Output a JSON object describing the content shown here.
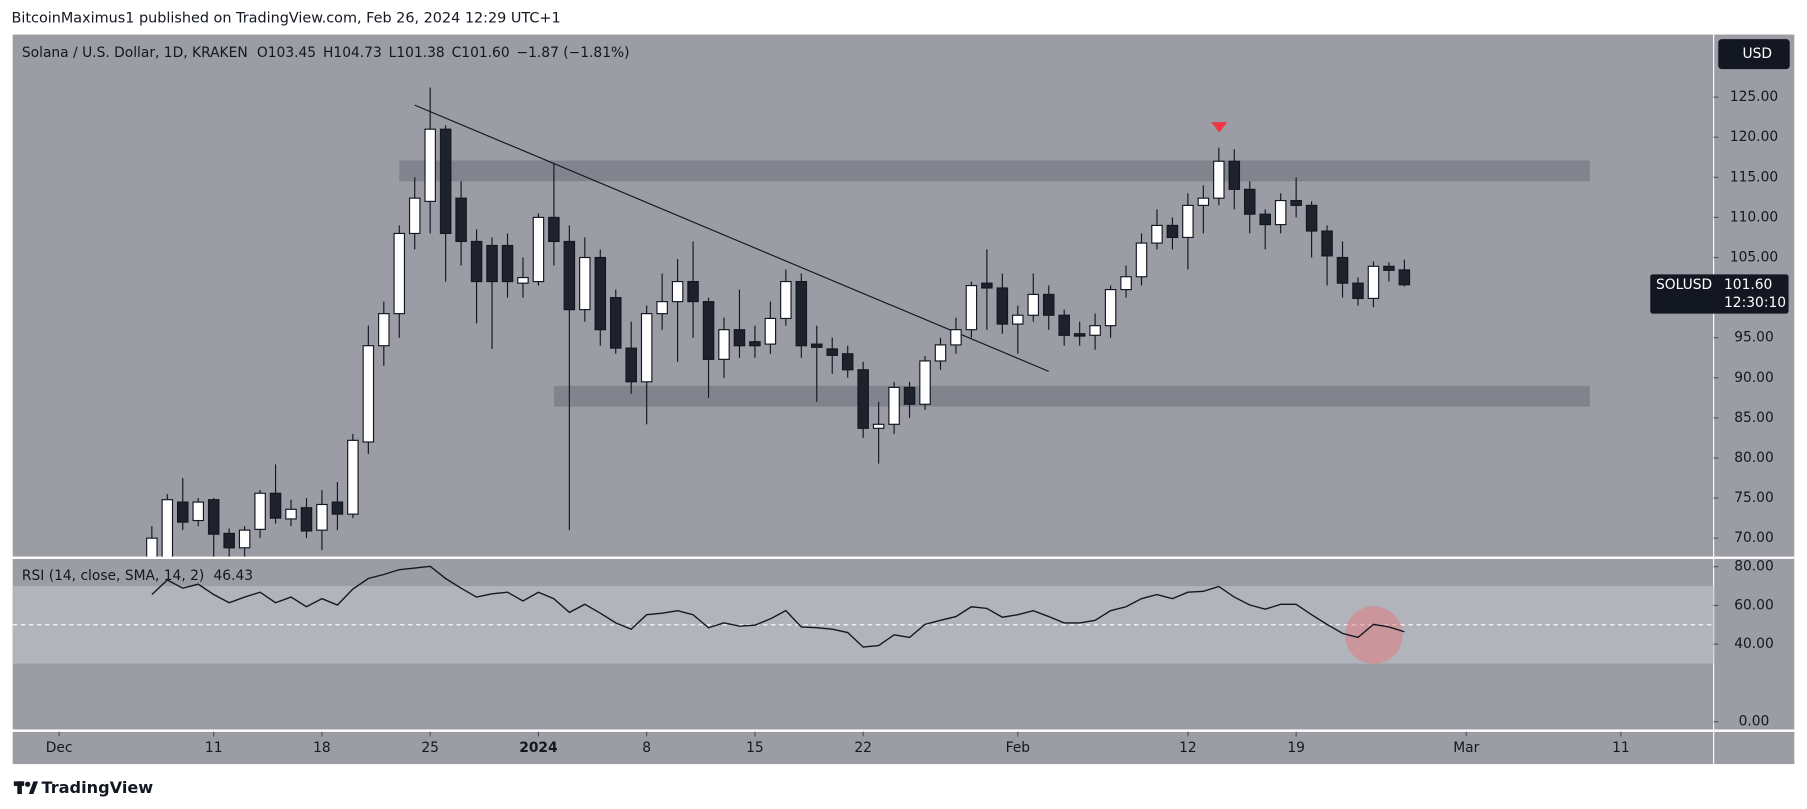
{
  "header": "BitcoinMaximus1 published on TradingView.com, Feb 26, 2024 12:29 UTC+1",
  "footer": "TradingView",
  "currency_button": "USD",
  "chart_data": [
    {
      "type": "candlestick",
      "legend": {
        "symbol": "Solana / U.S. Dollar, 1D, KRAKEN",
        "fields": [
          {
            "key": "O",
            "value": "103.45"
          },
          {
            "key": "H",
            "value": "104.73"
          },
          {
            "key": "L",
            "value": "101.38"
          },
          {
            "key": "C",
            "value": "101.60"
          }
        ],
        "change": "−1.87 (−1.81%)"
      },
      "last_price": {
        "symbol": "SOLUSD",
        "label": "101.60",
        "countdown": "12:30:10"
      },
      "up_color": "#ffffff",
      "down_color": "#1e222d",
      "wick_color": "#131722",
      "x": [
        "2023-12-07",
        "2023-12-08",
        "2023-12-09",
        "2023-12-10",
        "2023-12-11",
        "2023-12-12",
        "2023-12-13",
        "2023-12-14",
        "2023-12-15",
        "2023-12-16",
        "2023-12-17",
        "2023-12-18",
        "2023-12-19",
        "2023-12-20",
        "2023-12-21",
        "2023-12-22",
        "2023-12-23",
        "2023-12-24",
        "2023-12-25",
        "2023-12-26",
        "2023-12-27",
        "2023-12-28",
        "2023-12-29",
        "2023-12-30",
        "2023-12-31",
        "2024-01-01",
        "2024-01-02",
        "2024-01-03",
        "2024-01-04",
        "2024-01-05",
        "2024-01-06",
        "2024-01-07",
        "2024-01-08",
        "2024-01-09",
        "2024-01-10",
        "2024-01-11",
        "2024-01-12",
        "2024-01-13",
        "2024-01-14",
        "2024-01-15",
        "2024-01-16",
        "2024-01-17",
        "2024-01-18",
        "2024-01-19",
        "2024-01-20",
        "2024-01-21",
        "2024-01-22",
        "2024-01-23",
        "2024-01-24",
        "2024-01-25",
        "2024-01-26",
        "2024-01-27",
        "2024-01-28",
        "2024-01-29",
        "2024-01-30",
        "2024-01-31",
        "2024-02-01",
        "2024-02-02",
        "2024-02-03",
        "2024-02-04",
        "2024-02-05",
        "2024-02-06",
        "2024-02-07",
        "2024-02-08",
        "2024-02-09",
        "2024-02-10",
        "2024-02-11",
        "2024-02-12",
        "2024-02-13",
        "2024-02-14",
        "2024-02-15",
        "2024-02-16",
        "2024-02-17",
        "2024-02-18",
        "2024-02-19",
        "2024-02-20",
        "2024-02-21",
        "2024-02-22",
        "2024-02-23",
        "2024-02-24",
        "2024-02-25",
        "2024-02-26"
      ],
      "open": [
        67,
        67.5,
        74.5,
        72.2,
        74.8,
        70.6,
        68.8,
        71.1,
        75.6,
        72.4,
        73.8,
        71,
        74.5,
        73,
        82,
        94,
        98,
        108,
        112,
        121,
        112.4,
        107,
        106.5,
        106.5,
        101.8,
        102,
        110,
        107,
        98.5,
        105,
        100,
        93.7,
        89.5,
        98,
        99.5,
        102,
        99.5,
        92.3,
        96,
        94.5,
        94.2,
        97.4,
        102,
        94.2,
        93.6,
        93,
        91,
        83.7,
        84.2,
        88.8,
        86.7,
        92.1,
        94.1,
        96,
        101.8,
        101.2,
        96.7,
        97.8,
        100.4,
        97.8,
        95.5,
        95.3,
        96.5,
        101,
        102.6,
        106.8,
        109,
        107.5,
        111.5,
        112.4,
        117,
        113.5,
        110.4,
        109.1,
        112.1,
        111.5,
        108.3,
        105,
        101.8,
        99.9,
        103.9,
        103.45
      ],
      "high": [
        71.5,
        75.5,
        77.5,
        75,
        75,
        71.2,
        71.5,
        76,
        79.2,
        74.8,
        75,
        76,
        77,
        83,
        96.5,
        99.5,
        109,
        115,
        126.2,
        121.5,
        114.5,
        108.5,
        107.5,
        108,
        105,
        110.5,
        116.7,
        109,
        107.5,
        106,
        101,
        97,
        99,
        103,
        104.8,
        107,
        100,
        97.5,
        101,
        96.5,
        99.5,
        103.5,
        103,
        96.5,
        95,
        94,
        92,
        87,
        89.5,
        89.5,
        92.7,
        95,
        97.5,
        102,
        106,
        103,
        99,
        103,
        101.5,
        98.5,
        97,
        98,
        101.5,
        104,
        108,
        111,
        110,
        113,
        114,
        118.7,
        118.5,
        114.5,
        111,
        113,
        115,
        112,
        109,
        107,
        102.5,
        104.5,
        104.4,
        104.73
      ],
      "low": [
        63,
        66,
        71,
        71.5,
        67,
        67,
        67,
        70,
        71.8,
        71.5,
        70,
        68.5,
        71,
        72.5,
        80.5,
        91.5,
        95,
        106,
        108,
        102,
        104,
        96.8,
        93.6,
        100,
        100,
        101.5,
        104,
        71,
        97,
        94,
        93,
        88,
        84.2,
        96,
        92,
        95,
        87.5,
        90,
        92.5,
        92.5,
        93,
        96.5,
        92.5,
        87,
        90.5,
        90,
        82.5,
        79.3,
        83,
        85,
        86,
        91,
        93,
        95,
        96,
        95.5,
        93,
        97,
        96,
        94,
        94,
        93.5,
        95,
        100,
        101.5,
        106,
        106,
        103.5,
        108,
        111.5,
        111,
        108,
        106,
        108,
        110,
        105,
        101.5,
        100,
        99,
        98.8,
        102,
        101.38
      ],
      "close": [
        70,
        74.8,
        72,
        74.5,
        70.5,
        68.8,
        71,
        75.6,
        72.5,
        73.6,
        70.9,
        74.2,
        73,
        82.2,
        94,
        98,
        108,
        112.4,
        121,
        108,
        107,
        102,
        102,
        102,
        102.5,
        110,
        107,
        98.5,
        105,
        96,
        93.7,
        89.5,
        98,
        99.5,
        102,
        99.5,
        92.3,
        96,
        94,
        94,
        97.4,
        102,
        94,
        93.8,
        92.8,
        91,
        83.7,
        84.2,
        88.8,
        86.7,
        92.1,
        94.1,
        96,
        101.5,
        101.2,
        96.7,
        97.8,
        100.4,
        97.8,
        95.3,
        95.2,
        96.5,
        101,
        102.6,
        106.8,
        109,
        107.5,
        111.5,
        112.4,
        117,
        113.5,
        110.4,
        109.1,
        112.1,
        111.5,
        108.3,
        105.2,
        101.8,
        99.9,
        103.9,
        103.4,
        101.6
      ],
      "zones": [
        {
          "x": [
            "2023-12-23",
            "2024-03-09"
          ],
          "y": [
            114.5,
            117.1
          ]
        },
        {
          "x": [
            "2024-01-02",
            "2024-03-09"
          ],
          "y": [
            86.4,
            89
          ]
        }
      ],
      "zone_color": "#7e8089",
      "trendline": {
        "x": [
          "2023-12-24",
          "2024-02-03"
        ],
        "y": [
          124,
          90.8
        ]
      },
      "xlim": [
        "2023-11-28",
        "2024-03-17"
      ],
      "ylim": [
        67.7,
        132.8
      ],
      "yticks": [
        {
          "value": 70,
          "label": "70.00"
        },
        {
          "value": 75,
          "label": "75.00"
        },
        {
          "value": 80,
          "label": "80.00"
        },
        {
          "value": 85,
          "label": "85.00"
        },
        {
          "value": 90,
          "label": "90.00"
        },
        {
          "value": 95,
          "label": "95.00"
        },
        {
          "value": 100,
          "label": "100.00"
        },
        {
          "value": 105,
          "label": "105.00"
        },
        {
          "value": 110,
          "label": "110.00"
        },
        {
          "value": 115,
          "label": "115.00"
        },
        {
          "value": 120,
          "label": "120.00"
        },
        {
          "value": 125,
          "label": "125.00"
        }
      ],
      "xticks": [
        {
          "value": "2023-12-01",
          "label": "Dec"
        },
        {
          "value": "2023-12-11",
          "label": "11"
        },
        {
          "value": "2023-12-18",
          "label": "18"
        },
        {
          "value": "2023-12-25",
          "label": "25"
        },
        {
          "value": "2024-01-01",
          "label": "2024",
          "bold": true
        },
        {
          "value": "2024-01-08",
          "label": "8"
        },
        {
          "value": "2024-01-15",
          "label": "15"
        },
        {
          "value": "2024-01-22",
          "label": "22"
        },
        {
          "value": "2024-02-01",
          "label": "Feb"
        },
        {
          "value": "2024-02-12",
          "label": "12"
        },
        {
          "value": "2024-02-19",
          "label": "19"
        },
        {
          "value": "2024-03-01",
          "label": "Mar"
        },
        {
          "value": "2024-03-11",
          "label": "11"
        }
      ]
    },
    {
      "type": "line",
      "title": "RSI (14, close, SMA, 14, 2)",
      "color": "#131722",
      "values": [
        65.6,
        73.1,
        68.9,
        71.0,
        65.6,
        61.4,
        64.3,
        66.8,
        61.4,
        64.3,
        59.3,
        63.5,
        60.2,
        68.5,
        73.9,
        76.0,
        78.5,
        79.3,
        80.2,
        73.9,
        68.9,
        64.3,
        66.0,
        66.8,
        62.3,
        66.8,
        63.5,
        56.4,
        60.6,
        56.0,
        51.0,
        47.7,
        55.2,
        56.0,
        57.3,
        55.2,
        48.5,
        51.0,
        49.3,
        49.8,
        53.1,
        57.3,
        48.9,
        48.5,
        47.7,
        46.0,
        38.5,
        39.3,
        44.8,
        43.5,
        50.2,
        52.3,
        54.3,
        59.3,
        58.5,
        53.9,
        55.2,
        57.3,
        54.3,
        51.0,
        51.0,
        52.3,
        57.3,
        59.3,
        63.5,
        65.6,
        63.5,
        66.8,
        67.3,
        69.8,
        64.3,
        60.2,
        58.1,
        60.6,
        60.6,
        55.2,
        50.2,
        45.6,
        43.5,
        50.2,
        48.9,
        46.43
      ],
      "bands": [
        30,
        70
      ],
      "band_color": "#b2b4bb",
      "midline": 50,
      "ylim": [
        -4,
        84
      ],
      "yticks": [
        {
          "value": 0,
          "label": "0.00"
        },
        {
          "value": 40,
          "label": "40.00"
        },
        {
          "value": 60,
          "label": "60.00"
        },
        {
          "value": 80,
          "label": "80.00"
        }
      ]
    }
  ]
}
